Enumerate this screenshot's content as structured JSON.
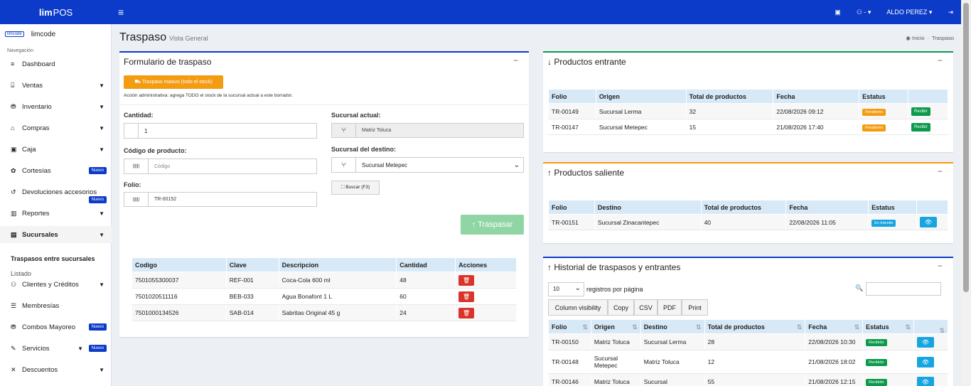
{
  "app": {
    "brand_bold": "lim",
    "brand_rest": "POS",
    "menu_icon": "≡",
    "user": "ALDO PEREZ ▾",
    "branch_icon": "⚇ - ▾",
    "store_icon": "▣",
    "logout_icon": "⇥"
  },
  "sidebar": {
    "logo_text": "limcode",
    "company": "limcode",
    "nav_label": "Navegación",
    "items": [
      {
        "icon": "≡",
        "label": "Dashboard",
        "arrow": "",
        "badge": ""
      },
      {
        "icon": "⌸",
        "label": "Ventas",
        "arrow": "▼",
        "badge": ""
      },
      {
        "icon": "⛃",
        "label": "Inventario",
        "arrow": "▼",
        "badge": ""
      },
      {
        "icon": "⌂",
        "label": "Compras",
        "arrow": "▼",
        "badge": ""
      },
      {
        "icon": "▣",
        "label": "Caja",
        "arrow": "▼",
        "badge": ""
      },
      {
        "icon": "✿",
        "label": "Cortesías",
        "arrow": "",
        "badge": "Nuevo"
      },
      {
        "icon": "↺",
        "label": "Devoluciones accesorios",
        "arrow": "",
        "badge": "Nuevo"
      },
      {
        "icon": "▥",
        "label": "Reportes",
        "arrow": "▼",
        "badge": ""
      },
      {
        "icon": "▤",
        "label": "Sucursales",
        "arrow": "▼",
        "badge": ""
      },
      {
        "icon": "⚇",
        "label": "Clientes y Créditos",
        "arrow": "▼",
        "badge": ""
      },
      {
        "icon": "☰",
        "label": "Membresías",
        "arrow": "",
        "badge": ""
      },
      {
        "icon": "⛃",
        "label": "Combos Mayoreo",
        "arrow": "",
        "badge": "Nuevo"
      },
      {
        "icon": "✎",
        "label": "Servicios",
        "arrow": "▼",
        "badge": "Nuevo"
      },
      {
        "icon": "✕",
        "label": "Descuentos",
        "arrow": "▼",
        "badge": ""
      }
    ],
    "sub_active": "Traspasos entre sucursales",
    "sub_other": "Listado"
  },
  "page": {
    "title": "Traspaso",
    "subtitle": "Vista General",
    "crumb_home": "◉ Inicio",
    "crumb_sep": "›",
    "crumb_current": "Traspaso"
  },
  "form": {
    "title": "Formulario de traspaso",
    "collapse": "−",
    "massive_btn": "⛟  Traspaso masivo (todo el stock)",
    "note": "Acción administrativa: agrega TODO el stock de la sucursal actual a este borrador.",
    "qty_label": "Cantidad:",
    "qty_value": "1",
    "code_label": "Código de producto:",
    "code_placeholder": "Código",
    "folio_label": "Folio:",
    "folio_value": "TR-00152",
    "current_label": "Sucursal actual:",
    "current_value": "Matriz Toluca",
    "dest_label": "Sucursal del destino:",
    "dest_value": "Sucursal Metepec",
    "search_btn": "⛶  Buscar (F3)",
    "submit_btn": "↑  Traspasar",
    "barcode_icon": "||||||",
    "branch_icon": "⑂",
    "table": {
      "headers": [
        "Codigo",
        "Clave",
        "Descripcion",
        "Cantidad",
        "Acciones"
      ],
      "rows": [
        [
          "7501055300037",
          "REF-001",
          "Coca-Cola 600 ml",
          "48"
        ],
        [
          "7501020511116",
          "BEB-033",
          "Agua Bonafont 1 L",
          "60"
        ],
        [
          "7501000134526",
          "SAB-014",
          "Sabritas Original 45 g",
          "24"
        ]
      ],
      "del_icon": "🗑"
    }
  },
  "incoming": {
    "title": "↓ Productos entrante",
    "collapse": "−",
    "headers": [
      "Folio",
      "Origen",
      "Total de productos",
      "Fecha",
      "Estatus",
      ""
    ],
    "rows": [
      [
        "TR-00149",
        "Sucursal Lerma",
        "32",
        "22/08/2026 09:12",
        "Pendiente",
        "Recibir"
      ],
      [
        "TR-00147",
        "Sucursal Metepec",
        "15",
        "21/08/2026 17:40",
        "Pendiente",
        "Recibir"
      ]
    ],
    "status_color": "#f39c12"
  },
  "outgoing": {
    "title": "↑ Productos saliente",
    "collapse": "−",
    "headers": [
      "Folio",
      "Destino",
      "Total de productos",
      "Fecha",
      "Estatus",
      ""
    ],
    "rows": [
      [
        "TR-00151",
        "Sucursal Zinacantepec",
        "40",
        "22/08/2026 11:05",
        "En tránsito",
        "👁"
      ]
    ],
    "status_color": "#17a5e0"
  },
  "history": {
    "title": "↑ Historial de traspasos y entrantes",
    "collapse": "−",
    "page_size": "10",
    "page_size_suffix": "registros por página",
    "search_icon": "🔍",
    "buttons": [
      "Column visibility",
      "Copy",
      "CSV",
      "PDF",
      "Print"
    ],
    "headers": [
      "Folio",
      "Origen",
      "Destino",
      "Total de productos",
      "Fecha",
      "Estatus",
      ""
    ],
    "sort_icons": [
      "⇅",
      "⇅",
      "⇅",
      "⇅",
      "⇅",
      "⇅",
      "⇅"
    ],
    "rows": [
      [
        "TR-00150",
        "Matriz Toluca",
        "Sucursal Lerma",
        "28",
        "22/08/2026 10:30",
        "Recibido",
        "👁"
      ],
      [
        "TR-00148",
        "Sucursal Metepec",
        "Matriz Toluca",
        "12",
        "21/08/2026 18:02",
        "Recibido",
        "👁"
      ],
      [
        "TR-00146",
        "Matriz Toluca",
        "Sucursal",
        "55",
        "21/08/2026 12:15",
        "Recibido",
        "👁"
      ]
    ],
    "status_color": "#0b9a4b"
  }
}
